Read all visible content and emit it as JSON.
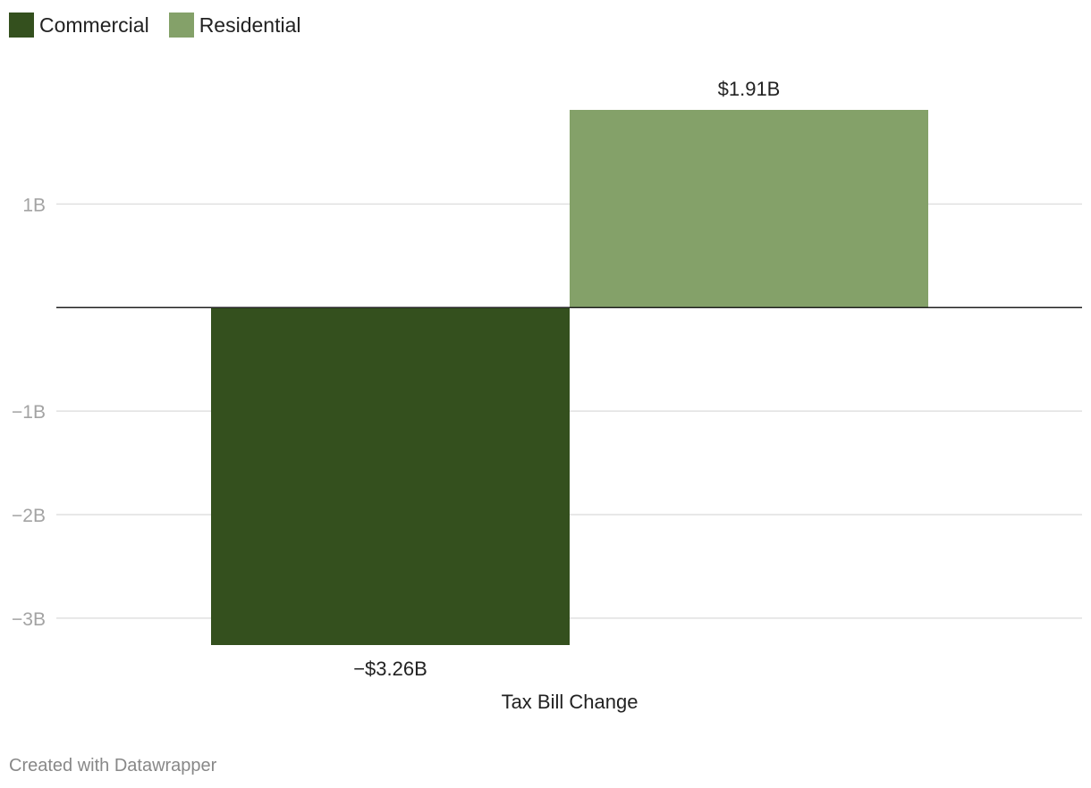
{
  "legend": [
    {
      "label": "Commercial",
      "color": "#34501e"
    },
    {
      "label": "Residential",
      "color": "#84a169"
    }
  ],
  "chart_data": {
    "type": "bar",
    "categories": [
      "Tax Bill Change"
    ],
    "series": [
      {
        "name": "Commercial",
        "values": [
          -3.26
        ],
        "color": "#34501e",
        "label": "−$3.26B"
      },
      {
        "name": "Residential",
        "values": [
          1.91
        ],
        "color": "#84a169",
        "label": "$1.91B"
      }
    ],
    "yticks": [
      {
        "value": 1,
        "label": "1B"
      },
      {
        "value": -1,
        "label": "−1B"
      },
      {
        "value": -2,
        "label": "−2B"
      },
      {
        "value": -3,
        "label": "−3B"
      }
    ],
    "unit": "billions of dollars",
    "ylim": [
      -3.26,
      1.91
    ],
    "grid": true,
    "legend_position": "top-left"
  },
  "footer": {
    "credit": "Created with Datawrapper"
  }
}
